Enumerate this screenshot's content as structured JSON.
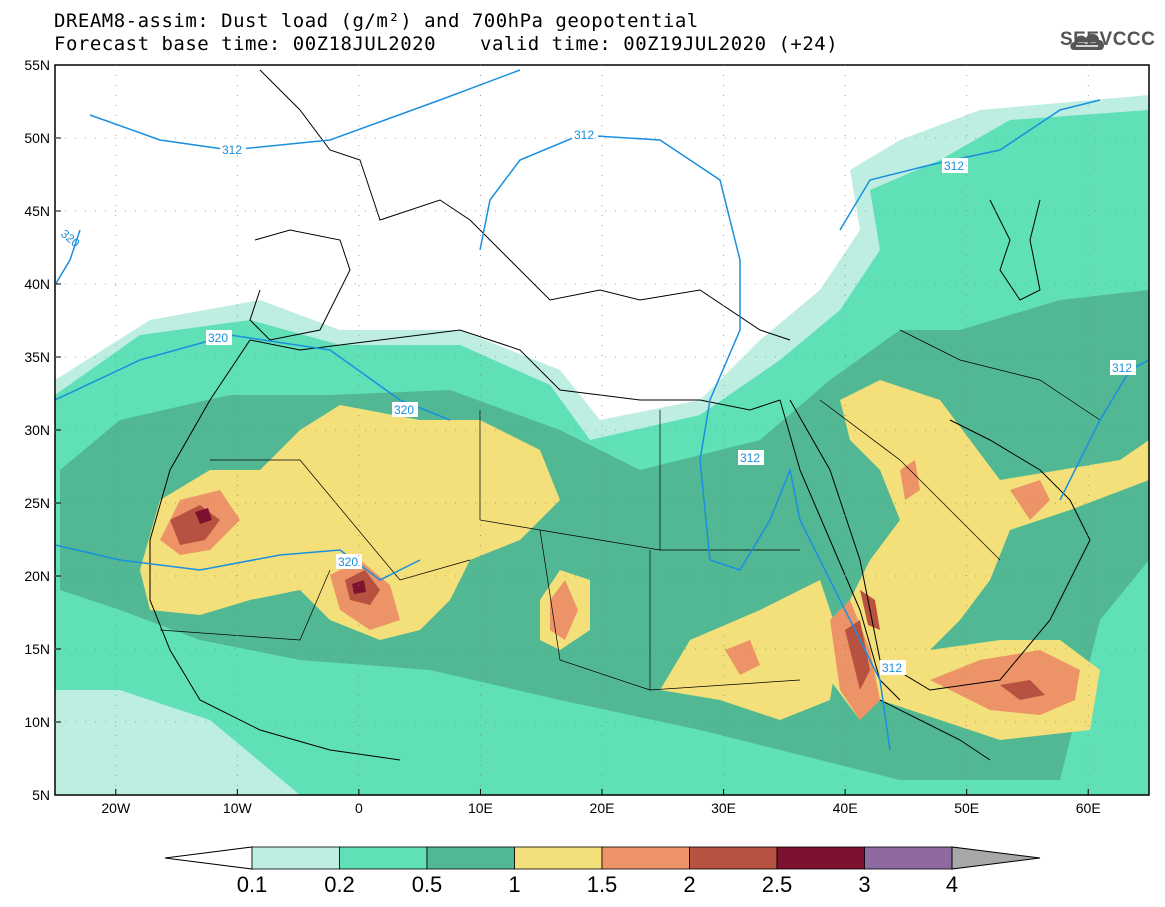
{
  "title_line1": "DREAM8-assim: Dust load (g/m²) and 700hPa geopotential",
  "title_line2": "Forecast base time: 00Z18JUL2020",
  "valid_time": "valid time: 00Z19JUL2020 (+24)",
  "logo_text": "SEEVCCC",
  "icon": "cloud-logo-icon",
  "map": {
    "lon_range": [
      -25,
      65
    ],
    "lat_range": [
      5,
      55
    ],
    "lat_labels": [
      "55N",
      "50N",
      "45N",
      "40N",
      "35N",
      "30N",
      "25N",
      "20N",
      "15N",
      "10N",
      "5N"
    ],
    "lon_labels": [
      "20W",
      "10W",
      "0",
      "10E",
      "20E",
      "30E",
      "40E",
      "50E",
      "60E"
    ],
    "contour_labels": [
      "312",
      "312",
      "312",
      "312",
      "312",
      "320",
      "320",
      "320",
      "320",
      "312"
    ]
  },
  "colorbar": {
    "labels": [
      "0.1",
      "0.2",
      "0.5",
      "1",
      "1.5",
      "2",
      "2.5",
      "3",
      "4"
    ],
    "colors": [
      "#bdeee1",
      "#5fe0b6",
      "#52b893",
      "#f3e07a",
      "#ec9467",
      "#b6523f",
      "#7d1230",
      "#8f6aa0"
    ],
    "under_color": "#ffffff",
    "over_color": "#a8a8a8"
  }
}
